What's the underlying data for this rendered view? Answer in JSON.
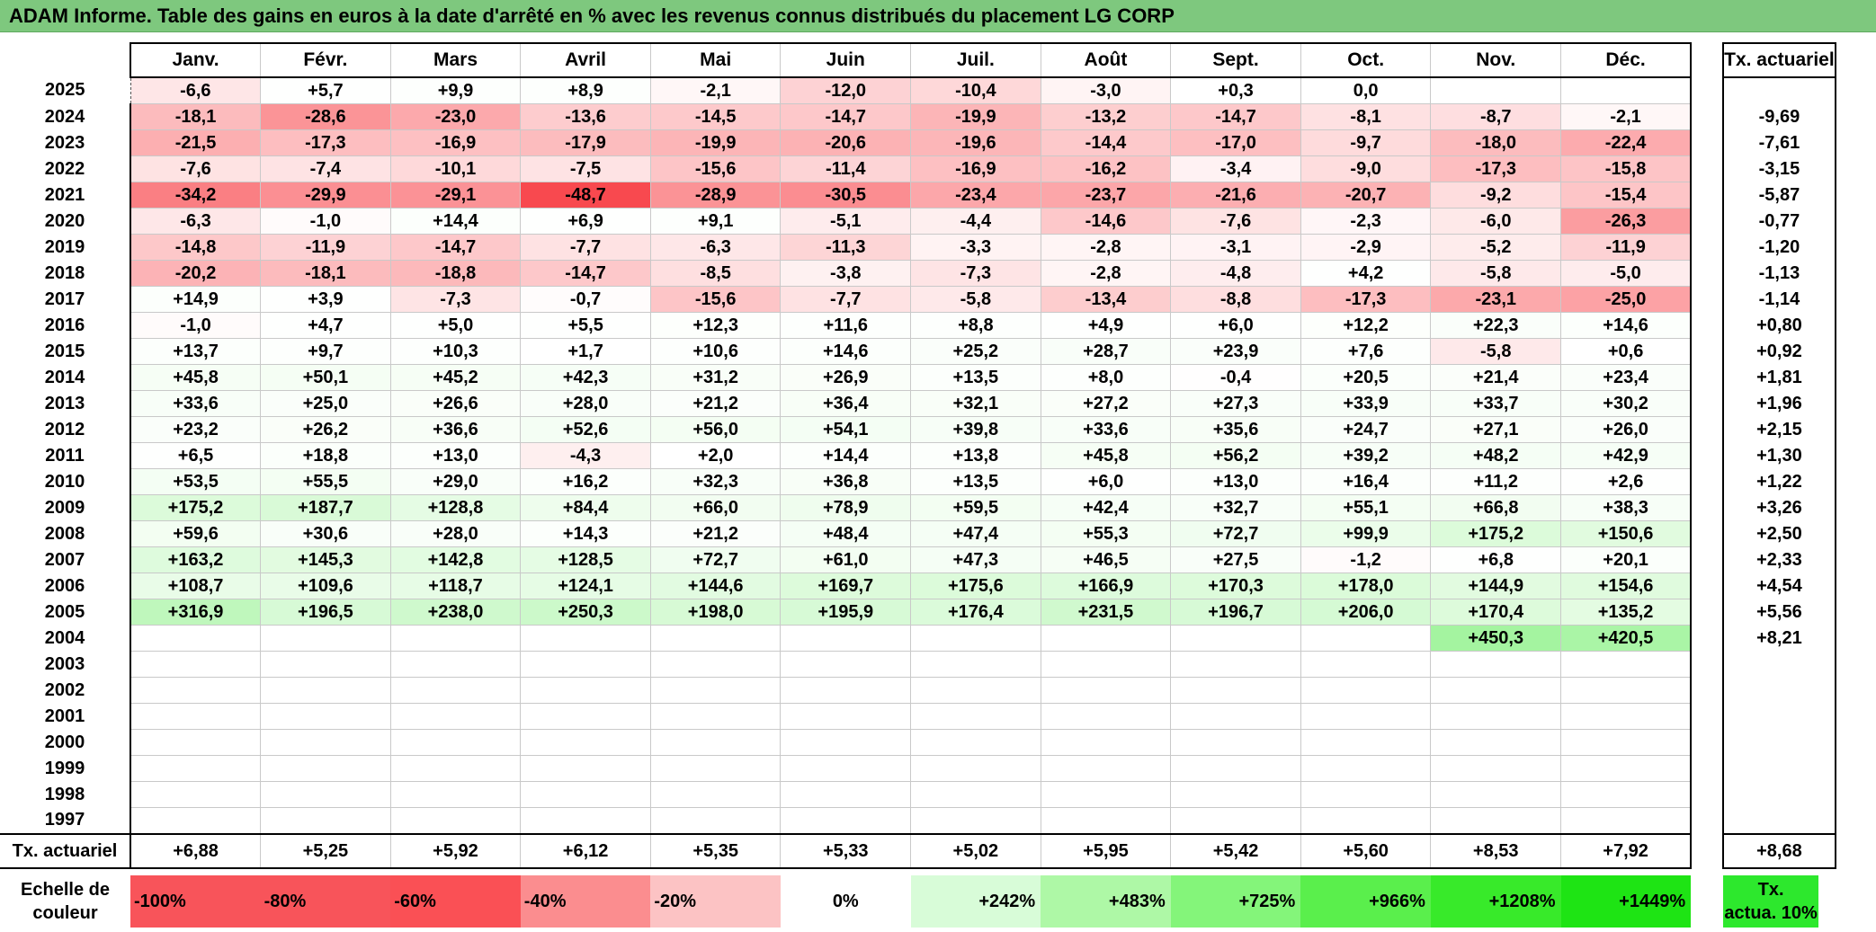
{
  "title": "ADAM Informe. Table des gains en euros à la date d'arrêté en % avec les revenus connus distribués du placement LG CORP",
  "months": [
    "Janv.",
    "Févr.",
    "Mars",
    "Avril",
    "Mai",
    "Juin",
    "Juil.",
    "Août",
    "Sept.",
    "Oct.",
    "Nov.",
    "Déc."
  ],
  "tx_header": "Tx. actuariel",
  "rows": [
    {
      "year": "2025",
      "values": [
        "-6,6",
        "+5,7",
        "+9,9",
        "+8,9",
        "-2,1",
        "-12,0",
        "-10,4",
        "-3,0",
        "+0,3",
        "0,0",
        "",
        ""
      ],
      "tx": ""
    },
    {
      "year": "2024",
      "values": [
        "-18,1",
        "-28,6",
        "-23,0",
        "-13,6",
        "-14,5",
        "-14,7",
        "-19,9",
        "-13,2",
        "-14,7",
        "-8,1",
        "-8,7",
        "-2,1"
      ],
      "tx": "-9,69"
    },
    {
      "year": "2023",
      "values": [
        "-21,5",
        "-17,3",
        "-16,9",
        "-17,9",
        "-19,9",
        "-20,6",
        "-19,6",
        "-14,4",
        "-17,0",
        "-9,7",
        "-18,0",
        "-22,4"
      ],
      "tx": "-7,61"
    },
    {
      "year": "2022",
      "values": [
        "-7,6",
        "-7,4",
        "-10,1",
        "-7,5",
        "-15,6",
        "-11,4",
        "-16,9",
        "-16,2",
        "-3,4",
        "-9,0",
        "-17,3",
        "-15,8"
      ],
      "tx": "-3,15"
    },
    {
      "year": "2021",
      "values": [
        "-34,2",
        "-29,9",
        "-29,1",
        "-48,7",
        "-28,9",
        "-30,5",
        "-23,4",
        "-23,7",
        "-21,6",
        "-20,7",
        "-9,2",
        "-15,4"
      ],
      "tx": "-5,87"
    },
    {
      "year": "2020",
      "values": [
        "-6,3",
        "-1,0",
        "+14,4",
        "+6,9",
        "+9,1",
        "-5,1",
        "-4,4",
        "-14,6",
        "-7,6",
        "-2,3",
        "-6,0",
        "-26,3"
      ],
      "tx": "-0,77"
    },
    {
      "year": "2019",
      "values": [
        "-14,8",
        "-11,9",
        "-14,7",
        "-7,7",
        "-6,3",
        "-11,3",
        "-3,3",
        "-2,8",
        "-3,1",
        "-2,9",
        "-5,2",
        "-11,9"
      ],
      "tx": "-1,20"
    },
    {
      "year": "2018",
      "values": [
        "-20,2",
        "-18,1",
        "-18,8",
        "-14,7",
        "-8,5",
        "-3,8",
        "-7,3",
        "-2,8",
        "-4,8",
        "+4,2",
        "-5,8",
        "-5,0"
      ],
      "tx": "-1,13"
    },
    {
      "year": "2017",
      "values": [
        "+14,9",
        "+3,9",
        "-7,3",
        "-0,7",
        "-15,6",
        "-7,7",
        "-5,8",
        "-13,4",
        "-8,8",
        "-17,3",
        "-23,1",
        "-25,0"
      ],
      "tx": "-1,14"
    },
    {
      "year": "2016",
      "values": [
        "-1,0",
        "+4,7",
        "+5,0",
        "+5,5",
        "+12,3",
        "+11,6",
        "+8,8",
        "+4,9",
        "+6,0",
        "+12,2",
        "+22,3",
        "+14,6"
      ],
      "tx": "+0,80"
    },
    {
      "year": "2015",
      "values": [
        "+13,7",
        "+9,7",
        "+10,3",
        "+1,7",
        "+10,6",
        "+14,6",
        "+25,2",
        "+28,7",
        "+23,9",
        "+7,6",
        "-5,8",
        "+0,6"
      ],
      "tx": "+0,92"
    },
    {
      "year": "2014",
      "values": [
        "+45,8",
        "+50,1",
        "+45,2",
        "+42,3",
        "+31,2",
        "+26,9",
        "+13,5",
        "+8,0",
        "-0,4",
        "+20,5",
        "+21,4",
        "+23,4"
      ],
      "tx": "+1,81"
    },
    {
      "year": "2013",
      "values": [
        "+33,6",
        "+25,0",
        "+26,6",
        "+28,0",
        "+21,2",
        "+36,4",
        "+32,1",
        "+27,2",
        "+27,3",
        "+33,9",
        "+33,7",
        "+30,2"
      ],
      "tx": "+1,96"
    },
    {
      "year": "2012",
      "values": [
        "+23,2",
        "+26,2",
        "+36,6",
        "+52,6",
        "+56,0",
        "+54,1",
        "+39,8",
        "+33,6",
        "+35,6",
        "+24,7",
        "+27,1",
        "+26,0"
      ],
      "tx": "+2,15"
    },
    {
      "year": "2011",
      "values": [
        "+6,5",
        "+18,8",
        "+13,0",
        "-4,3",
        "+2,0",
        "+14,4",
        "+13,8",
        "+45,8",
        "+56,2",
        "+39,2",
        "+48,2",
        "+42,9"
      ],
      "tx": "+1,30"
    },
    {
      "year": "2010",
      "values": [
        "+53,5",
        "+55,5",
        "+29,0",
        "+16,2",
        "+32,3",
        "+36,8",
        "+13,5",
        "+6,0",
        "+13,0",
        "+16,4",
        "+11,2",
        "+2,6"
      ],
      "tx": "+1,22"
    },
    {
      "year": "2009",
      "values": [
        "+175,2",
        "+187,7",
        "+128,8",
        "+84,4",
        "+66,0",
        "+78,9",
        "+59,5",
        "+42,4",
        "+32,7",
        "+55,1",
        "+66,8",
        "+38,3"
      ],
      "tx": "+3,26"
    },
    {
      "year": "2008",
      "values": [
        "+59,6",
        "+30,6",
        "+28,0",
        "+14,3",
        "+21,2",
        "+48,4",
        "+47,4",
        "+55,3",
        "+72,7",
        "+99,9",
        "+175,2",
        "+150,6"
      ],
      "tx": "+2,50"
    },
    {
      "year": "2007",
      "values": [
        "+163,2",
        "+145,3",
        "+142,8",
        "+128,5",
        "+72,7",
        "+61,0",
        "+47,3",
        "+46,5",
        "+27,5",
        "-1,2",
        "+6,8",
        "+20,1"
      ],
      "tx": "+2,33"
    },
    {
      "year": "2006",
      "values": [
        "+108,7",
        "+109,6",
        "+118,7",
        "+124,1",
        "+144,6",
        "+169,7",
        "+175,6",
        "+166,9",
        "+170,3",
        "+178,0",
        "+144,9",
        "+154,6"
      ],
      "tx": "+4,54"
    },
    {
      "year": "2005",
      "values": [
        "+316,9",
        "+196,5",
        "+238,0",
        "+250,3",
        "+198,0",
        "+195,9",
        "+176,4",
        "+231,5",
        "+196,7",
        "+206,0",
        "+170,4",
        "+135,2"
      ],
      "tx": "+5,56"
    },
    {
      "year": "2004",
      "values": [
        "",
        "",
        "",
        "",
        "",
        "",
        "",
        "",
        "",
        "",
        "+450,3",
        "+420,5"
      ],
      "tx": "+8,21"
    },
    {
      "year": "2003",
      "values": [
        "",
        "",
        "",
        "",
        "",
        "",
        "",
        "",
        "",
        "",
        "",
        ""
      ],
      "tx": ""
    },
    {
      "year": "2002",
      "values": [
        "",
        "",
        "",
        "",
        "",
        "",
        "",
        "",
        "",
        "",
        "",
        ""
      ],
      "tx": ""
    },
    {
      "year": "2001",
      "values": [
        "",
        "",
        "",
        "",
        "",
        "",
        "",
        "",
        "",
        "",
        "",
        ""
      ],
      "tx": ""
    },
    {
      "year": "2000",
      "values": [
        "",
        "",
        "",
        "",
        "",
        "",
        "",
        "",
        "",
        "",
        "",
        ""
      ],
      "tx": ""
    },
    {
      "year": "1999",
      "values": [
        "",
        "",
        "",
        "",
        "",
        "",
        "",
        "",
        "",
        "",
        "",
        ""
      ],
      "tx": ""
    },
    {
      "year": "1998",
      "values": [
        "",
        "",
        "",
        "",
        "",
        "",
        "",
        "",
        "",
        "",
        "",
        ""
      ],
      "tx": ""
    },
    {
      "year": "1997",
      "values": [
        "",
        "",
        "",
        "",
        "",
        "",
        "",
        "",
        "",
        "",
        "",
        ""
      ],
      "tx": ""
    }
  ],
  "footer": {
    "label": "Tx. actuariel",
    "values": [
      "+6,88",
      "+5,25",
      "+5,92",
      "+6,12",
      "+5,35",
      "+5,33",
      "+5,02",
      "+5,95",
      "+5,42",
      "+5,60",
      "+8,53",
      "+7,92"
    ],
    "tx": "+8,68"
  },
  "scale": {
    "label_line1": "Echelle de",
    "label_line2": "couleur",
    "steps": [
      {
        "text": "-100%",
        "color": "#f8545a",
        "kind": "neg"
      },
      {
        "text": "-80%",
        "color": "#f8545a",
        "kind": "neg"
      },
      {
        "text": "-60%",
        "color": "#fa5055",
        "kind": "neg"
      },
      {
        "text": "-40%",
        "color": "#fb8d8f",
        "kind": "neg"
      },
      {
        "text": "-20%",
        "color": "#fcc3c4",
        "kind": "neg"
      },
      {
        "text": "0%",
        "color": "#ffffff",
        "kind": "zero"
      },
      {
        "text": "+242%",
        "color": "#d8fcd8",
        "kind": "pos"
      },
      {
        "text": "+483%",
        "color": "#aef8a6",
        "kind": "pos"
      },
      {
        "text": "+725%",
        "color": "#84f57a",
        "kind": "pos"
      },
      {
        "text": "+966%",
        "color": "#5aef4c",
        "kind": "pos"
      },
      {
        "text": "+1208%",
        "color": "#38ea2a",
        "kind": "pos"
      },
      {
        "text": "+1449%",
        "color": "#1ee414",
        "kind": "pos"
      }
    ],
    "tx_line1": "Tx.",
    "tx_line2": "actua. 10%",
    "tx_color": "#2de82d"
  },
  "colors": {
    "title_bg": "#7ec87e",
    "negative_full": "#f8444a",
    "positive_full": "#1ee414"
  }
}
